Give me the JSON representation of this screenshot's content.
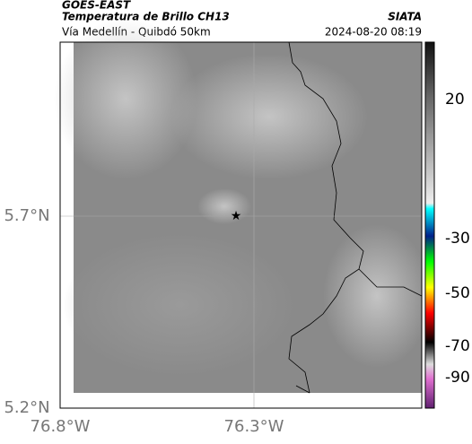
{
  "header": {
    "satellite": "GOES-EAST",
    "product": "Temperatura de Brillo CH13",
    "agency": "SIATA",
    "route": "Vía Medellín - Quibdó 50km",
    "timestamp": "2024-08-20 08:19"
  },
  "axes": {
    "latitude_labels": [
      "5.7°N",
      "5.2°N"
    ],
    "longitude_labels": [
      "76.8°W",
      "76.3°W"
    ]
  },
  "colorbar": {
    "labels": [
      "20",
      "-30",
      "-50",
      "-70",
      "-90"
    ]
  }
}
